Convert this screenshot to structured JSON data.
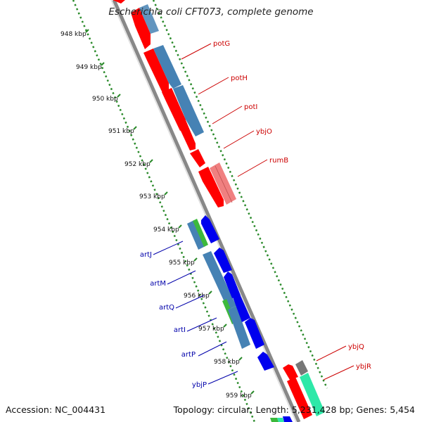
{
  "title": "Escherichia coli CFT073, complete genome",
  "footer": {
    "accession": "Accession: NC_004431",
    "summary": "Topology: circular; Length: 5,231,428 bp; Genes: 5,454"
  },
  "colors": {
    "forward_cds": "#ff0000",
    "reverse_cds": "#0000ee",
    "rrna_feature": "#f08080",
    "blue_track": "#4682b4",
    "green_track": "#3cb93c",
    "teal_track": "#2ee8a8",
    "gray_track": "#777777",
    "backbone": "#888888",
    "dotted_ruler": "#2a8a2a",
    "forward_label": "#cc0000",
    "reverse_label": "#0000aa"
  },
  "ruler": {
    "unit": "kbp",
    "ticks": [
      {
        "kbp": 948,
        "label": "948 kbp"
      },
      {
        "kbp": 949,
        "label": "949 kbp"
      },
      {
        "kbp": 950,
        "label": "950 kbp"
      },
      {
        "kbp": 951,
        "label": "951 kbp"
      },
      {
        "kbp": 952,
        "label": "952 kbp"
      },
      {
        "kbp": 953,
        "label": "953 kbp"
      },
      {
        "kbp": 954,
        "label": "954 kbp"
      },
      {
        "kbp": 955,
        "label": "955 kbp"
      },
      {
        "kbp": 956,
        "label": "956 kbp"
      },
      {
        "kbp": 957,
        "label": "957 kbp"
      },
      {
        "kbp": 958,
        "label": "958 kbp"
      },
      {
        "kbp": 959,
        "label": "959 kbp"
      }
    ]
  },
  "genes_forward": [
    {
      "name": "potG",
      "start_kbp": 947.4,
      "end_kbp": 948.4
    },
    {
      "name": "potH",
      "start_kbp": 948.5,
      "end_kbp": 949.4
    },
    {
      "name": "potI",
      "start_kbp": 949.4,
      "end_kbp": 950.3
    },
    {
      "name": "ybjO",
      "start_kbp": 950.3,
      "end_kbp": 951.0
    },
    {
      "name": "rumB",
      "start_kbp": 951.0,
      "end_kbp": 952.5
    },
    {
      "name": "ybjQ",
      "start_kbp": 958.8,
      "end_kbp": 959.2
    },
    {
      "name": "ybjR",
      "start_kbp": 959.2,
      "end_kbp": 960.0
    }
  ],
  "genes_reverse": [
    {
      "name": "artJ",
      "start_kbp": 953.5,
      "end_kbp": 954.3
    },
    {
      "name": "artM",
      "start_kbp": 954.5,
      "end_kbp": 955.2
    },
    {
      "name": "artQ",
      "start_kbp": 955.2,
      "end_kbp": 955.9
    },
    {
      "name": "artI",
      "start_kbp": 955.9,
      "end_kbp": 956.9
    },
    {
      "name": "artP",
      "start_kbp": 956.9,
      "end_kbp": 957.7
    },
    {
      "name": "ybjP",
      "start_kbp": 958.2,
      "end_kbp": 958.7
    }
  ]
}
